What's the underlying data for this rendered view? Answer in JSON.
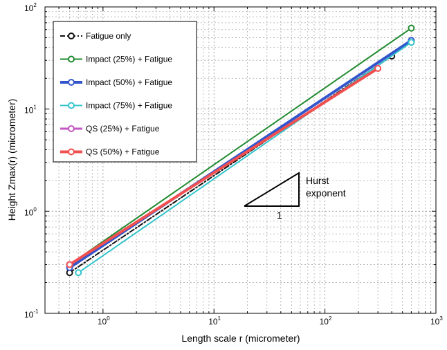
{
  "chart_data": {
    "type": "line",
    "xscale": "log",
    "yscale": "log",
    "xlim": [
      0.3,
      1000
    ],
    "ylim": [
      0.1,
      100
    ],
    "xlabel": "Length scale r (micrometer)",
    "ylabel": "Height Zmax(r) (micrometer)",
    "grid": true,
    "legend_position": "top-left",
    "x_ticks": [
      {
        "base": "10",
        "exp": "0",
        "value": 1
      },
      {
        "base": "10",
        "exp": "1",
        "value": 10
      },
      {
        "base": "10",
        "exp": "2",
        "value": 100
      },
      {
        "base": "10",
        "exp": "3",
        "value": 1000
      }
    ],
    "y_ticks": [
      {
        "base": "10",
        "exp": "-1",
        "value": 0.1
      },
      {
        "base": "10",
        "exp": "0",
        "value": 1
      },
      {
        "base": "10",
        "exp": "1",
        "value": 10
      },
      {
        "base": "10",
        "exp": "2",
        "value": 100
      }
    ],
    "series": [
      {
        "name": "Fatigue only",
        "color": "#111111",
        "style": "dashdot",
        "marker": "open-circle",
        "width": 2,
        "points": [
          [
            0.5,
            0.25
          ],
          [
            400,
            33
          ]
        ]
      },
      {
        "name": "Impact (25%) + Fatigue",
        "color": "#1f8a2e",
        "style": "solid",
        "marker": "open-circle",
        "width": 2,
        "points": [
          [
            0.5,
            0.3
          ],
          [
            600,
            62
          ]
        ]
      },
      {
        "name": "Impact (50%) + Fatigue",
        "color": "#3355cc",
        "style": "solid",
        "marker": "open-circle",
        "width": 4,
        "points": [
          [
            0.5,
            0.28
          ],
          [
            600,
            47
          ]
        ]
      },
      {
        "name": "Impact (75%) + Fatigue",
        "color": "#33c4cc",
        "style": "solid",
        "marker": "open-circle",
        "width": 2,
        "points": [
          [
            0.6,
            0.25
          ],
          [
            600,
            45
          ]
        ]
      },
      {
        "name": "QS (25%) + Fatigue",
        "color": "#c455c4",
        "style": "solid",
        "marker": "open-circle",
        "width": 3,
        "points": [
          [
            0.5,
            0.3
          ],
          [
            300,
            25
          ]
        ]
      },
      {
        "name": "QS (50%) + Fatigue",
        "color": "#f25050",
        "style": "solid",
        "marker": "open-circle",
        "width": 4,
        "points": [
          [
            0.5,
            0.3
          ],
          [
            300,
            25
          ]
        ]
      }
    ],
    "annotation": {
      "label_line1": "Hurst",
      "label_line2": "exponent",
      "run_label": "1"
    }
  }
}
